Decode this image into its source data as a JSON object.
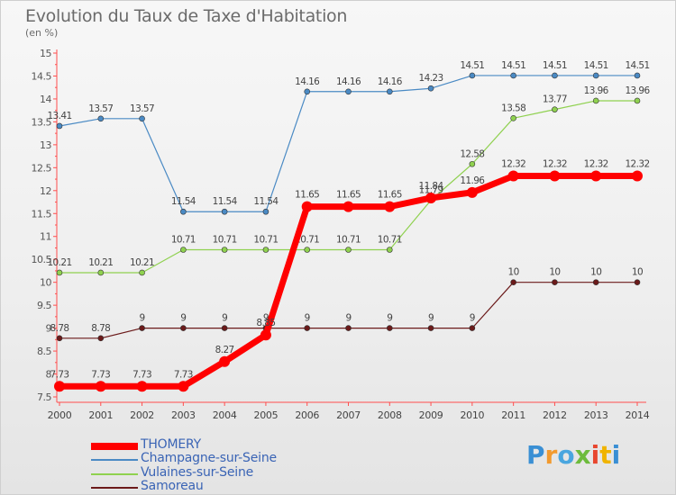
{
  "title": "Evolution du Taux de Taxe d'Habitation",
  "unit": "(en %)",
  "logo": [
    "P",
    "r",
    "o",
    "x",
    "i",
    "t",
    "i"
  ],
  "chart_data": {
    "type": "line",
    "x": [
      2000,
      2001,
      2002,
      2003,
      2004,
      2005,
      2006,
      2007,
      2008,
      2009,
      2010,
      2011,
      2012,
      2013,
      2014
    ],
    "ylim": [
      7.5,
      15
    ],
    "yticks": [
      7.5,
      8,
      8.5,
      9,
      9.5,
      10,
      10.5,
      11,
      11.5,
      12,
      12.5,
      13,
      13.5,
      14,
      14.5,
      15
    ],
    "ytick_labels": [
      "7.5",
      "8",
      "8.5",
      "9",
      "9.5",
      "10",
      "10.5",
      "11",
      "11.5",
      "12",
      "12.5",
      "13",
      "13.5",
      "14",
      "14.5",
      "15"
    ],
    "grid": false,
    "legend_position": "bottom-left",
    "series": [
      {
        "name": "Champagne-sur-Seine",
        "color": "#4a8ac4",
        "width": 1.2,
        "values": [
          13.41,
          13.57,
          13.57,
          11.54,
          11.54,
          11.54,
          14.16,
          14.16,
          14.16,
          14.23,
          14.51,
          14.51,
          14.51,
          14.51,
          14.51
        ],
        "labels": [
          "13.41",
          "13.57",
          "13.57",
          "11.54",
          "11.54",
          "11.54",
          "14.16",
          "14.16",
          "14.16",
          "14.23",
          "14.51",
          "14.51",
          "14.51",
          "14.51",
          "14.51"
        ]
      },
      {
        "name": "Vulaines-sur-Seine",
        "color": "#8fd14f",
        "width": 1.2,
        "values": [
          10.21,
          10.21,
          10.21,
          10.71,
          10.71,
          10.71,
          10.71,
          10.71,
          10.71,
          11.79,
          12.58,
          13.58,
          13.77,
          13.96,
          13.96
        ],
        "labels": [
          "10.21",
          "10.21",
          "10.21",
          "10.71",
          "10.71",
          "10.71",
          "10.71",
          "10.71",
          "10.71",
          "11.79",
          "12.58",
          "13.58",
          "13.77",
          "13.96",
          "13.96"
        ]
      },
      {
        "name": "Samoreau",
        "color": "#6b1a1a",
        "width": 1.2,
        "values": [
          8.78,
          8.78,
          9,
          9,
          9,
          9,
          9,
          9,
          9,
          9,
          9,
          10,
          10,
          10,
          10
        ],
        "labels": [
          "8.78",
          "8.78",
          "9",
          "9",
          "9",
          "9",
          "9",
          "9",
          "9",
          "9",
          "9",
          "10",
          "10",
          "10",
          "10"
        ]
      },
      {
        "name": "THOMERY",
        "color": "#ff0000",
        "width": 7,
        "values": [
          7.73,
          7.73,
          7.73,
          7.73,
          8.27,
          8.85,
          11.65,
          11.65,
          11.65,
          11.84,
          11.96,
          12.32,
          12.32,
          12.32,
          12.32
        ],
        "labels": [
          "7.73",
          "7.73",
          "7.73",
          "7.73",
          "8.27",
          "8.85",
          "11.65",
          "11.65",
          "11.65",
          "11.84",
          "11.96",
          "12.32",
          "12.32",
          "12.32",
          "12.32"
        ]
      }
    ],
    "legend_order": [
      "THOMERY",
      "Champagne-sur-Seine",
      "Vulaines-sur-Seine",
      "Samoreau"
    ]
  }
}
